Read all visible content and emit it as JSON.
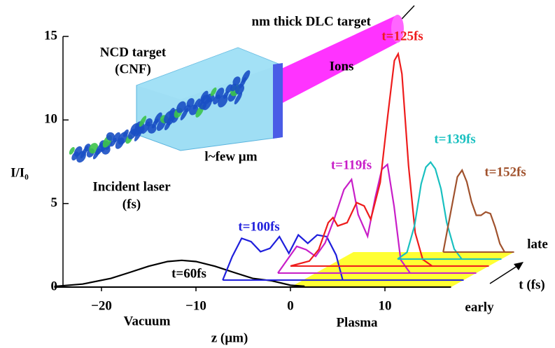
{
  "chart_data": {
    "type": "waterfall",
    "y_label": "I/I₀",
    "x_label": "z (µm)",
    "ylim": [
      0,
      15
    ],
    "yticks": [
      0,
      5,
      10,
      15
    ],
    "xlim": [
      -25,
      17
    ],
    "xticks": [
      {
        "value": -20,
        "label": "−20"
      },
      {
        "value": -10,
        "label": "−10"
      },
      0,
      10
    ],
    "annotations": [
      "nm thick DLC target",
      "NCD target",
      "(CNF)",
      "Ions",
      "l~few µm",
      "Incident laser",
      "(fs)",
      "Vacuum",
      "Plasma",
      "late",
      "t (fs)",
      "early"
    ],
    "series": [
      {
        "name": "t=60fs",
        "color": "#000000",
        "x": [
          -25,
          -22,
          -19,
          -17,
          -15,
          -13,
          -11.5,
          -10,
          -8,
          -6,
          -4,
          -2,
          0,
          1.5
        ],
        "values": [
          0.04,
          0.18,
          0.52,
          0.88,
          1.25,
          1.53,
          1.6,
          1.53,
          1.25,
          0.88,
          0.52,
          0.38,
          0.11,
          0.05
        ]
      },
      {
        "name": "t=100fs",
        "color": "#1f1fdc",
        "x": [
          -8.5,
          -7.5,
          -6.5,
          -5.5,
          -4.5,
          -3.5,
          -2.5,
          -1.5,
          -0.5,
          0.5,
          1.5,
          2.5,
          3.5,
          4.2
        ],
        "values": [
          0,
          1.4,
          2.5,
          2.3,
          1.7,
          1.9,
          2.6,
          1.6,
          2.7,
          2.2,
          2.7,
          2.6,
          1.5,
          0
        ]
      },
      {
        "name": "t=119fs",
        "color": "#c81ec8",
        "x": [
          -4,
          -3,
          -2,
          -1,
          0,
          1,
          2,
          3,
          3.8,
          4.5,
          5.5,
          6.3,
          7,
          7.6,
          8.3,
          9,
          10
        ],
        "values": [
          0,
          0.8,
          1.6,
          1.4,
          1.0,
          1.8,
          3.3,
          5.0,
          5.6,
          3.5,
          2.2,
          4.5,
          6.2,
          6.5,
          4.0,
          0.8,
          0
        ]
      },
      {
        "name": "t=125fs",
        "color": "#ee1c1c",
        "x": [
          -4,
          -2,
          -1,
          0,
          0.5,
          1,
          2,
          3,
          3.8,
          4.5,
          5.5,
          6.3,
          7,
          7.4,
          7.8,
          8.5,
          9.2,
          10,
          11
        ],
        "values": [
          0,
          0.3,
          1,
          2.6,
          2.9,
          2.4,
          2.6,
          3.8,
          3.6,
          2.8,
          5,
          9,
          12.3,
          12.7,
          11.5,
          6,
          2,
          0.4,
          0
        ]
      },
      {
        "name": "t=139fs",
        "color": "#19c0c0",
        "x": [
          6,
          7,
          7.8,
          8.5,
          9,
          9.5,
          10,
          10.6,
          11.2,
          12,
          12.8
        ],
        "values": [
          0,
          0.4,
          2,
          4.5,
          5.5,
          5.8,
          5.4,
          4.2,
          2.2,
          0.6,
          0
        ]
      },
      {
        "name": "t=152fs",
        "color": "#a0522d",
        "x": [
          9.5,
          10,
          10.5,
          11,
          11.5,
          12,
          12.5,
          13,
          13.5,
          14,
          14.5,
          15,
          15.5,
          16
        ],
        "values": [
          0,
          1.5,
          3,
          4.5,
          4.9,
          4.2,
          3,
          2.2,
          2.2,
          2.4,
          2.3,
          1.5,
          0.5,
          0
        ]
      }
    ]
  }
}
